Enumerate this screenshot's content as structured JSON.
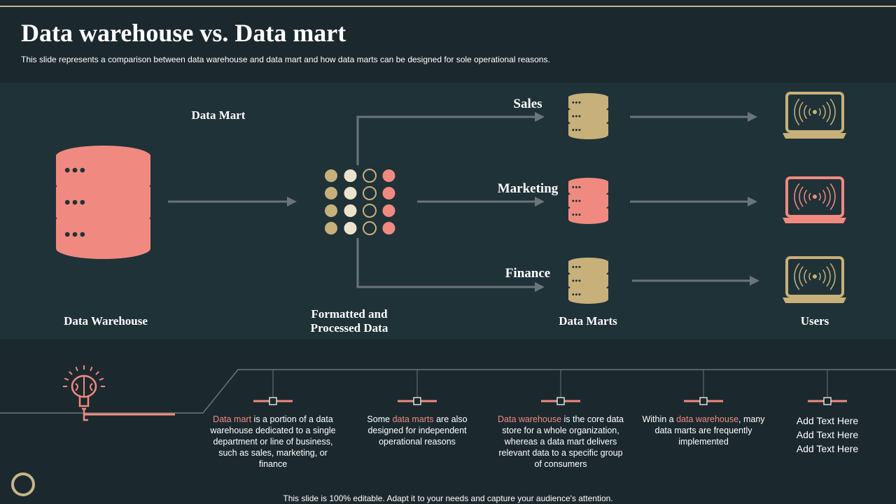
{
  "header": {
    "title": "Data warehouse vs. Data mart",
    "subtitle": "This slide represents a comparison between data warehouse and data mart and how data marts can be designed for sole operational reasons."
  },
  "diagram": {
    "data_mart_label": "Data Mart",
    "warehouse_label": "Data Warehouse",
    "processed_label": [
      "Formatted and",
      "Processed Data"
    ],
    "marts": [
      "Sales",
      "Marketing",
      "Finance"
    ],
    "marts_label": "Data Marts",
    "users_label": "Users"
  },
  "notes": [
    {
      "parts": [
        {
          "text": "Data mart",
          "accent": true
        },
        {
          "text": " is a portion of a data warehouse  dedicated to a single department  or line of business, such as sales, marketing, or finance"
        }
      ]
    },
    {
      "parts": [
        {
          "text": "Some "
        },
        {
          "text": "data marts",
          "accent": true
        },
        {
          "text": " are also designed for independent operational reasons"
        }
      ]
    },
    {
      "parts": [
        {
          "text": "Data warehouse",
          "accent": true
        },
        {
          "text": " is the core data store for a whole organization, whereas  a data mart delivers  relevant  data to a specific group of consumers"
        }
      ]
    },
    {
      "parts": [
        {
          "text": "Within a "
        },
        {
          "text": "data warehouse",
          "accent": true
        },
        {
          "text": ", many data marts are frequently implemented"
        }
      ]
    },
    {
      "lines": [
        "Add Text Here",
        "Add Text Here",
        "Add Text Here"
      ]
    }
  ],
  "footer": "This slide is 100% editable. Adapt it to your needs and capture your audience's attention."
}
